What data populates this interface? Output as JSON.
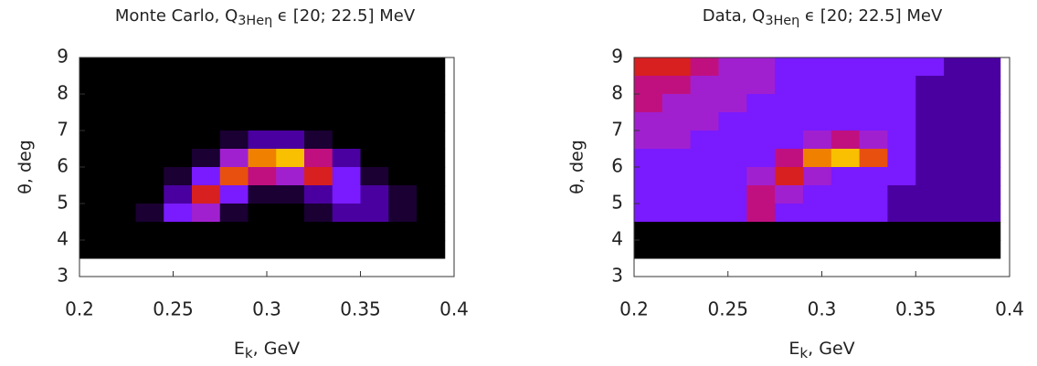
{
  "chart_data": [
    {
      "type": "heatmap",
      "title": "Monte Carlo, Q",
      "title_subscript": "3Heη",
      "title_suffix": " ϵ [20; 22.5] MeV",
      "xlabel": "E",
      "xlabel_subscript": "k",
      "xlabel_suffix": ", GeV",
      "ylabel": "θ, deg",
      "xlim": [
        0.2,
        0.4
      ],
      "xticks": [
        0.2,
        0.25,
        0.3,
        0.35,
        0.4
      ],
      "ylim": [
        3,
        9
      ],
      "yticks": [
        3,
        4,
        5,
        6,
        7,
        8,
        9
      ],
      "xbins": [
        0.2,
        0.215,
        0.23,
        0.245,
        0.26,
        0.275,
        0.29,
        0.305,
        0.32,
        0.335,
        0.35,
        0.365,
        0.38,
        0.395
      ],
      "ybins": [
        9,
        8.5,
        8,
        7.5,
        7,
        6.5,
        6,
        5.5,
        5,
        4.5,
        4,
        3.5
      ],
      "colormap": [
        "#000000",
        "#1a0033",
        "#4a00a0",
        "#7a1aff",
        "#a020d0",
        "#c01080",
        "#d82020",
        "#e85010",
        "#f08000",
        "#f8c000",
        "#ffff40"
      ],
      "z": [
        [
          0,
          0,
          0,
          0,
          0,
          0,
          0,
          0,
          0,
          0,
          0,
          0,
          0
        ],
        [
          0,
          0,
          0,
          0,
          0,
          0,
          0,
          0,
          0,
          0,
          0,
          0,
          0
        ],
        [
          0,
          0,
          0,
          0,
          0,
          0,
          0,
          0,
          0,
          0,
          0,
          0,
          0
        ],
        [
          0,
          0,
          0,
          0,
          0,
          0,
          0,
          0,
          0,
          0,
          0,
          0,
          0
        ],
        [
          0,
          0,
          0,
          0,
          0,
          1,
          2,
          2,
          1,
          0,
          0,
          0,
          0
        ],
        [
          0,
          0,
          0,
          0,
          1,
          4,
          8,
          9,
          5,
          2,
          0,
          0,
          0
        ],
        [
          0,
          0,
          0,
          1,
          3,
          7,
          5,
          4,
          6,
          3,
          1,
          0,
          0
        ],
        [
          0,
          0,
          0,
          2,
          6,
          3,
          1,
          1,
          2,
          3,
          2,
          1,
          0
        ],
        [
          0,
          0,
          1,
          3,
          4,
          1,
          0,
          0,
          1,
          2,
          2,
          1,
          0
        ],
        [
          0,
          0,
          0,
          0,
          0,
          0,
          0,
          0,
          0,
          0,
          0,
          0,
          0
        ],
        [
          0,
          0,
          0,
          0,
          0,
          0,
          0,
          0,
          0,
          0,
          0,
          0,
          0
        ]
      ]
    },
    {
      "type": "heatmap",
      "title": "Data, Q",
      "title_subscript": "3Heη",
      "title_suffix": " ϵ [20; 22.5] MeV",
      "xlabel": "E",
      "xlabel_subscript": "k",
      "xlabel_suffix": ", GeV",
      "ylabel": "θ, deg",
      "xlim": [
        0.2,
        0.4
      ],
      "xticks": [
        0.2,
        0.25,
        0.3,
        0.35,
        0.4
      ],
      "ylim": [
        3,
        9
      ],
      "yticks": [
        3,
        4,
        5,
        6,
        7,
        8,
        9
      ],
      "xbins": [
        0.2,
        0.215,
        0.23,
        0.245,
        0.26,
        0.275,
        0.29,
        0.305,
        0.32,
        0.335,
        0.35,
        0.365,
        0.38,
        0.395
      ],
      "ybins": [
        9,
        8.5,
        8,
        7.5,
        7,
        6.5,
        6,
        5.5,
        5,
        4.5,
        4,
        3.5
      ],
      "colormap": [
        "#000000",
        "#1a0033",
        "#4a00a0",
        "#7a1aff",
        "#a020d0",
        "#c01080",
        "#d82020",
        "#e85010",
        "#f08000",
        "#f8c000",
        "#ffff40"
      ],
      "z": [
        [
          6,
          6,
          5,
          4,
          4,
          3,
          3,
          3,
          3,
          3,
          3,
          2,
          2
        ],
        [
          5,
          5,
          4,
          4,
          4,
          3,
          3,
          3,
          3,
          3,
          2,
          2,
          2
        ],
        [
          5,
          4,
          4,
          4,
          3,
          3,
          3,
          3,
          3,
          3,
          2,
          2,
          2
        ],
        [
          4,
          4,
          4,
          3,
          3,
          3,
          3,
          3,
          3,
          3,
          2,
          2,
          2
        ],
        [
          4,
          4,
          3,
          3,
          3,
          3,
          4,
          5,
          4,
          3,
          2,
          2,
          2
        ],
        [
          3,
          3,
          3,
          3,
          3,
          5,
          8,
          9,
          7,
          3,
          2,
          2,
          2
        ],
        [
          3,
          3,
          3,
          3,
          4,
          6,
          4,
          3,
          3,
          3,
          2,
          2,
          2
        ],
        [
          3,
          3,
          3,
          3,
          5,
          4,
          3,
          3,
          3,
          2,
          2,
          2,
          2
        ],
        [
          3,
          3,
          3,
          3,
          5,
          3,
          3,
          3,
          3,
          2,
          2,
          2,
          2
        ],
        [
          0,
          0,
          0,
          0,
          0,
          0,
          0,
          0,
          0,
          0,
          0,
          0,
          0
        ],
        [
          0,
          0,
          0,
          0,
          0,
          0,
          0,
          0,
          0,
          0,
          0,
          0,
          0
        ]
      ]
    }
  ]
}
